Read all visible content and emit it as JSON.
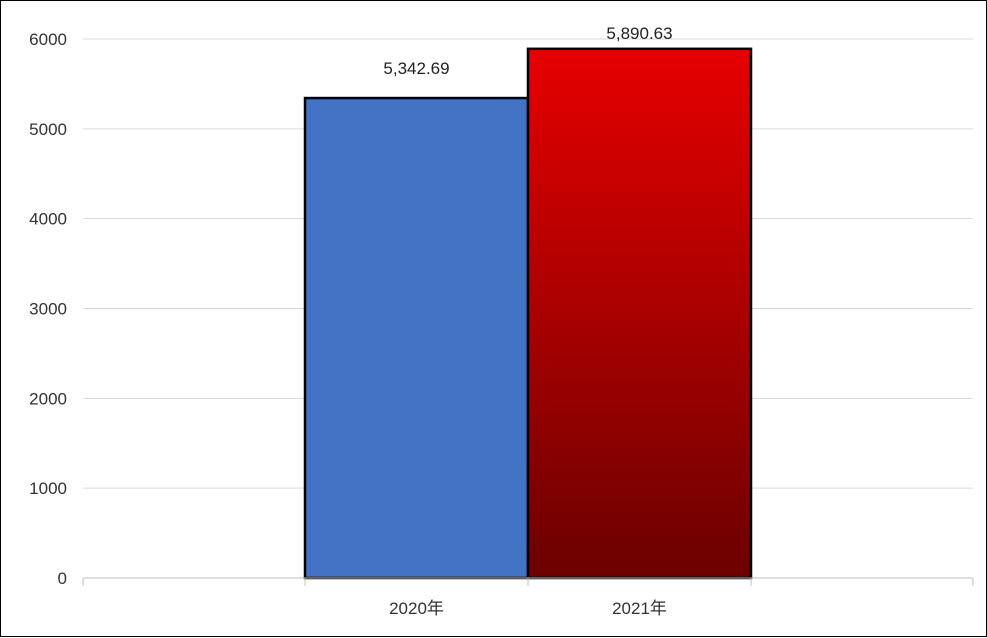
{
  "chart_data": {
    "type": "bar",
    "categories": [
      "2020年",
      "2021年"
    ],
    "values": [
      5342.69,
      5890.63
    ],
    "data_labels": [
      "5,342.69",
      "5,890.63"
    ],
    "ylim": [
      0,
      6000
    ],
    "yticks": [
      0,
      1000,
      2000,
      3000,
      4000,
      5000,
      6000
    ],
    "grid": true,
    "legend": "none",
    "colors": {
      "bar_2020": "#4472C4",
      "bar_2021_top": "#E60000",
      "bar_2021_bottom": "#6B0000",
      "grid": "#D9D9D9",
      "axis": "#BFBFBF"
    }
  }
}
